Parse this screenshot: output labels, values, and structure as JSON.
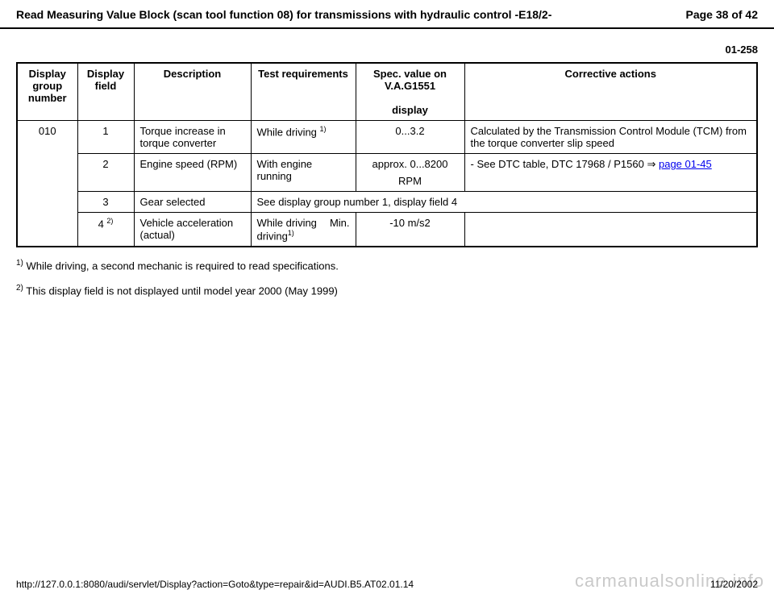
{
  "header": {
    "title": "Read Measuring Value Block (scan tool function 08) for transmissions with hydraulic control -E18/2-",
    "page_label": "Page 38 of 42"
  },
  "section_number": "01-258",
  "table": {
    "columns": {
      "group_num": "Display group number",
      "field": "Display field",
      "desc": "Description",
      "test": "Test requirements",
      "spec": "Spec. value on V.A.G1551",
      "spec_sub": "display",
      "corrective": "Corrective actions"
    },
    "group_value": "010",
    "rows": {
      "r1": {
        "field": "1",
        "desc": "Torque increase in torque converter",
        "test_text": "While driving ",
        "test_sup": "1)",
        "spec": "0...3.2",
        "corrective": "Calculated by the Transmission Control Module (TCM) from the torque converter slip speed"
      },
      "r2": {
        "field": "2",
        "desc": "Engine speed (RPM)",
        "test": "With engine running",
        "spec_line1": "approx. 0...8200",
        "spec_line2": "RPM",
        "corrective_prefix": "- See DTC table, DTC 17968 / P1560  ",
        "corrective_arrow": "⇒",
        "corrective_link": "page 01-45"
      },
      "r3": {
        "field": "3",
        "desc": "Gear selected",
        "merged_text": "See display group number 1, display field 4"
      },
      "r4": {
        "field_main": "4 ",
        "field_sup": "2)",
        "desc": "Vehicle acceleration (actual)",
        "test_left": "While driving",
        "test_right": "Min.",
        "test_sup": "1)",
        "spec": "-10 m/s2",
        "corrective": ""
      }
    }
  },
  "footnotes": {
    "fn1_num": "1)",
    "fn1_text": " While driving, a second mechanic is required to read specifications.",
    "fn2_num": "2)",
    "fn2_text": " This display field is not displayed until model year 2000 (May 1999)"
  },
  "footer": {
    "url": "http://127.0.0.1:8080/audi/servlet/Display?action=Goto&type=repair&id=AUDI.B5.AT02.01.14",
    "date": "11/20/2002"
  },
  "watermark": "carmanualsonline.info"
}
